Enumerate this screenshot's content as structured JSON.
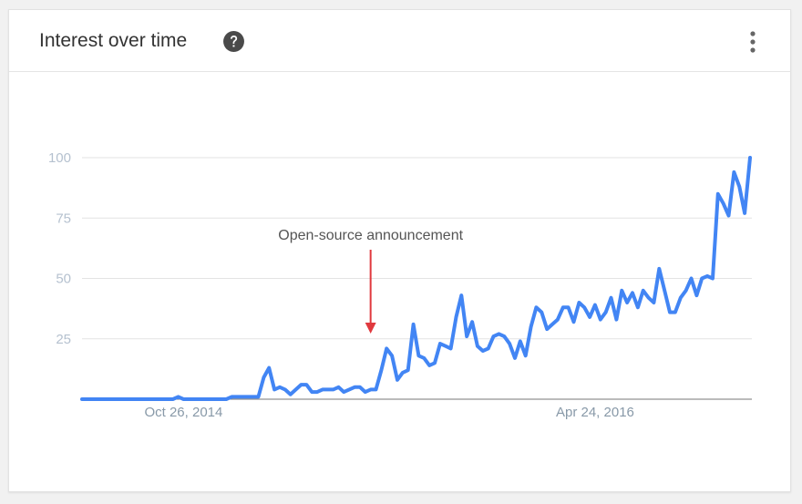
{
  "card": {
    "title": "Interest over time",
    "help_icon": "help-circle-icon",
    "menu_icon": "more-vert-icon"
  },
  "chart_data": {
    "type": "line",
    "title": "Interest over time",
    "xlabel": "",
    "ylabel": "",
    "ylim": [
      0,
      100
    ],
    "yticks": [
      25,
      50,
      75,
      100
    ],
    "grid": true,
    "x_tick_labels": [
      {
        "label": "Oct 26, 2014",
        "index": 19
      },
      {
        "label": "Apr 24, 2016",
        "index": 96
      }
    ],
    "annotation": {
      "text": "Open-source announcement",
      "index": 54
    },
    "series": [
      {
        "color": "#4285f4",
        "values": [
          0,
          0,
          0,
          0,
          0,
          0,
          0,
          0,
          0,
          0,
          0,
          0,
          0,
          0,
          0,
          0,
          0,
          0,
          1,
          0,
          0,
          0,
          0,
          0,
          0,
          0,
          0,
          0,
          1,
          1,
          1,
          1,
          1,
          1,
          9,
          13,
          4,
          5,
          4,
          2,
          4,
          6,
          6,
          3,
          3,
          4,
          4,
          4,
          5,
          3,
          4,
          5,
          5,
          3,
          4,
          4,
          12,
          21,
          18,
          8,
          11,
          12,
          31,
          18,
          17,
          14,
          15,
          23,
          22,
          21,
          34,
          43,
          26,
          32,
          22,
          20,
          21,
          26,
          27,
          26,
          23,
          17,
          24,
          18,
          30,
          38,
          36,
          29,
          31,
          33,
          38,
          38,
          32,
          40,
          38,
          34,
          39,
          33,
          36,
          42,
          33,
          45,
          40,
          44,
          38,
          45,
          42,
          40,
          54,
          45,
          36,
          36,
          42,
          45,
          50,
          43,
          50,
          51,
          50,
          85,
          81,
          76,
          94,
          88,
          77,
          100
        ]
      }
    ]
  }
}
